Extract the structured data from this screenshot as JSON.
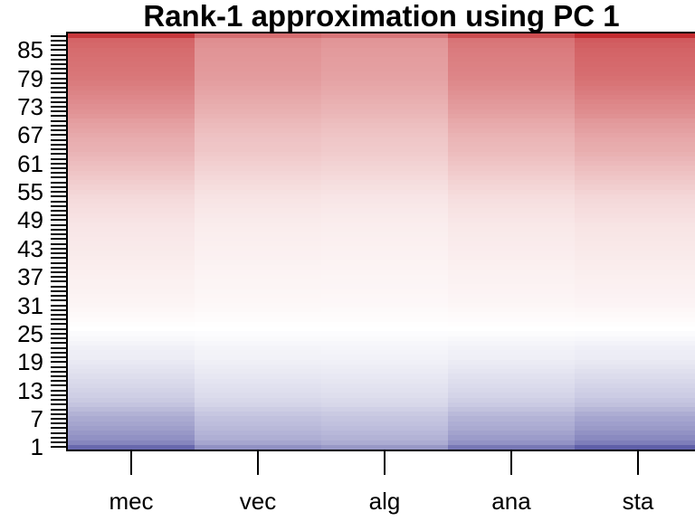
{
  "title": "Rank-1 approximation using PC 1",
  "chart_data": {
    "type": "heatmap",
    "title": "Rank-1 approximation using PC 1",
    "x_categories": [
      "mec",
      "vec",
      "alg",
      "ana",
      "sta"
    ],
    "n_rows": 88,
    "row_order": "bottom-to-top",
    "y_tick_rows_labeled": [
      1,
      7,
      13,
      19,
      25,
      31,
      37,
      43,
      49,
      55,
      61,
      67,
      73,
      79,
      85
    ],
    "y_tick_labels": [
      "1",
      "7",
      "13",
      "19",
      "25",
      "31",
      "37",
      "43",
      "49",
      "55",
      "61",
      "67",
      "73",
      "79",
      "85"
    ],
    "y_ticks_every_row": true,
    "cell_value_rule": "value(row,col) = row_score[row] * column_loading[col]",
    "column_loadings": [
      0.944,
      0.688,
      0.647,
      0.843,
      1.0
    ],
    "row_scores": [
      -0.82,
      -0.66,
      -0.6,
      -0.56,
      -0.52,
      -0.49,
      -0.46,
      -0.42,
      -0.37,
      -0.32,
      -0.29,
      -0.26,
      -0.24,
      -0.22,
      -0.2,
      -0.18,
      -0.16,
      -0.14,
      -0.12,
      -0.1,
      -0.09,
      -0.08,
      -0.06,
      -0.04,
      -0.02,
      0.0,
      0.01,
      0.02,
      0.03,
      0.04,
      0.05,
      0.055,
      0.06,
      0.065,
      0.07,
      0.072,
      0.076,
      0.08,
      0.085,
      0.09,
      0.095,
      0.1,
      0.105,
      0.11,
      0.115,
      0.12,
      0.125,
      0.13,
      0.14,
      0.15,
      0.16,
      0.17,
      0.18,
      0.19,
      0.21,
      0.23,
      0.25,
      0.27,
      0.29,
      0.31,
      0.33,
      0.35,
      0.37,
      0.39,
      0.4,
      0.41,
      0.43,
      0.45,
      0.47,
      0.49,
      0.52,
      0.54,
      0.56,
      0.58,
      0.6,
      0.62,
      0.64,
      0.66,
      0.68,
      0.69,
      0.7,
      0.71,
      0.72,
      0.73,
      0.74,
      0.76,
      0.78,
      1.0
    ],
    "colormap": {
      "type": "diverging",
      "domain": [
        -1,
        1
      ],
      "negative_end": "#3c3c96",
      "midpoint": "#ffffff",
      "positive_end": "#c42c30"
    },
    "legend": "none",
    "grid": "off"
  }
}
